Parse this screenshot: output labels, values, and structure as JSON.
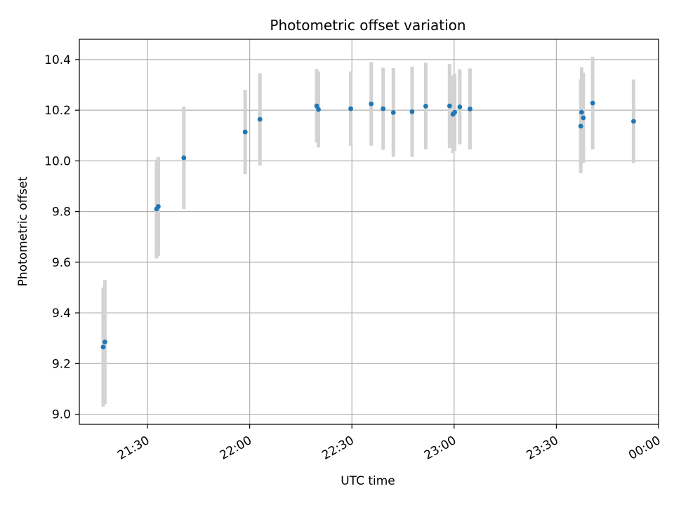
{
  "chart_data": {
    "type": "scatter",
    "title": "Photometric offset variation",
    "xlabel": "UTC time",
    "ylabel": "Photometric offset",
    "x_axis_type": "time",
    "xlim": [
      "21:10",
      "00:00"
    ],
    "ylim": [
      8.96,
      10.48
    ],
    "x_ticks": [
      "21:30",
      "22:00",
      "22:30",
      "23:00",
      "23:30",
      "00:00"
    ],
    "y_ticks": [
      9.0,
      9.2,
      9.4,
      9.6,
      9.8,
      10.0,
      10.2,
      10.4
    ],
    "grid": true,
    "legend": "none",
    "point_color": "#1f77b4",
    "errorbar_color": "#d3d3d3",
    "series": [
      {
        "points": [
          {
            "t": "21:17:00",
            "y": 9.265,
            "err": 0.235
          },
          {
            "t": "21:17:30",
            "y": 9.285,
            "err": 0.245
          },
          {
            "t": "21:32:40",
            "y": 9.81,
            "err": 0.195
          },
          {
            "t": "21:33:10",
            "y": 9.82,
            "err": 0.195
          },
          {
            "t": "21:40:40",
            "y": 10.012,
            "err": 0.202
          },
          {
            "t": "21:58:40",
            "y": 10.114,
            "err": 0.166
          },
          {
            "t": "22:03:00",
            "y": 10.164,
            "err": 0.182
          },
          {
            "t": "22:19:40",
            "y": 10.217,
            "err": 0.145
          },
          {
            "t": "22:20:10",
            "y": 10.203,
            "err": 0.15
          },
          {
            "t": "22:29:40",
            "y": 10.206,
            "err": 0.147
          },
          {
            "t": "22:35:40",
            "y": 10.225,
            "err": 0.165
          },
          {
            "t": "22:39:10",
            "y": 10.206,
            "err": 0.162
          },
          {
            "t": "22:42:10",
            "y": 10.191,
            "err": 0.175
          },
          {
            "t": "22:47:40",
            "y": 10.194,
            "err": 0.178
          },
          {
            "t": "22:51:40",
            "y": 10.216,
            "err": 0.171
          },
          {
            "t": "22:58:40",
            "y": 10.217,
            "err": 0.166
          },
          {
            "t": "22:59:40",
            "y": 10.184,
            "err": 0.153
          },
          {
            "t": "23:00:10",
            "y": 10.192,
            "err": 0.153
          },
          {
            "t": "23:01:40",
            "y": 10.213,
            "err": 0.148
          },
          {
            "t": "23:04:40",
            "y": 10.205,
            "err": 0.16
          },
          {
            "t": "23:37:10",
            "y": 10.137,
            "err": 0.185
          },
          {
            "t": "23:37:25",
            "y": 10.192,
            "err": 0.177
          },
          {
            "t": "23:37:55",
            "y": 10.17,
            "err": 0.178
          },
          {
            "t": "23:40:40",
            "y": 10.228,
            "err": 0.183
          },
          {
            "t": "23:52:40",
            "y": 10.156,
            "err": 0.165
          }
        ]
      }
    ]
  }
}
